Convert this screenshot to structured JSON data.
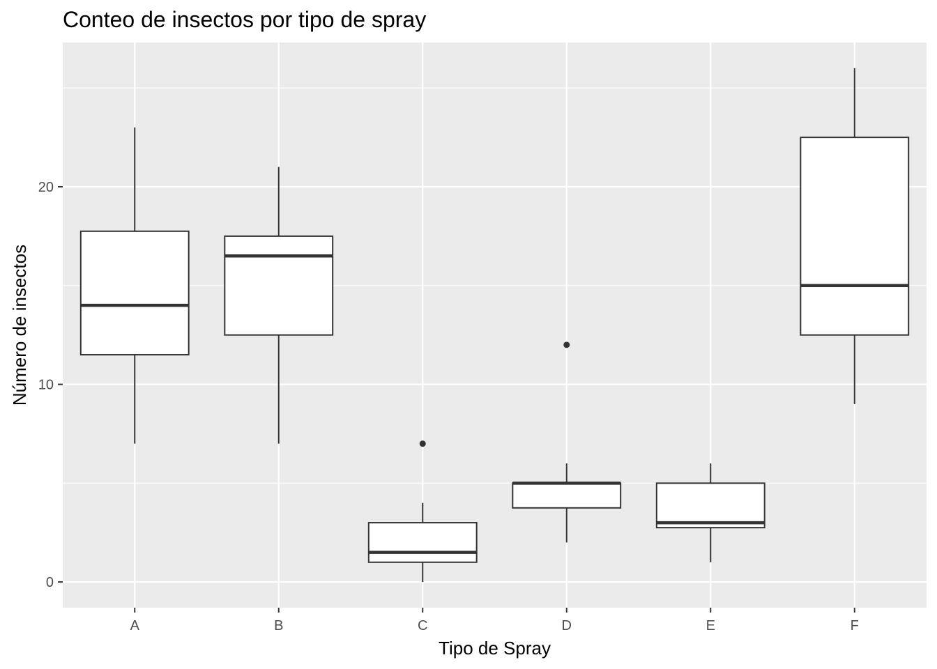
{
  "chart_data": {
    "type": "boxplot",
    "title": "Conteo de insectos por tipo de spray",
    "xlabel": "Tipo de Spray",
    "ylabel": "Número de insectos",
    "categories": [
      "A",
      "B",
      "C",
      "D",
      "E",
      "F"
    ],
    "ylim": [
      -1.3,
      27.3
    ],
    "yticks": [
      0,
      10,
      20
    ],
    "grid": true,
    "boxes": [
      {
        "category": "A",
        "whisker_low": 7,
        "q1": 11.5,
        "median": 14,
        "q3": 17.75,
        "whisker_high": 23,
        "outliers": []
      },
      {
        "category": "B",
        "whisker_low": 7,
        "q1": 12.5,
        "median": 16.5,
        "q3": 17.5,
        "whisker_high": 21,
        "outliers": []
      },
      {
        "category": "C",
        "whisker_low": 0,
        "q1": 1,
        "median": 1.5,
        "q3": 3,
        "whisker_high": 4,
        "outliers": [
          7
        ]
      },
      {
        "category": "D",
        "whisker_low": 2,
        "q1": 3.75,
        "median": 5,
        "q3": 5,
        "whisker_high": 6,
        "outliers": [
          12
        ]
      },
      {
        "category": "E",
        "whisker_low": 1,
        "q1": 2.75,
        "median": 3,
        "q3": 5,
        "whisker_high": 6,
        "outliers": []
      },
      {
        "category": "F",
        "whisker_low": 9,
        "q1": 12.5,
        "median": 15,
        "q3": 22.5,
        "whisker_high": 26,
        "outliers": []
      }
    ],
    "colors": {
      "panel_background": "#ebebeb",
      "grid": "#ffffff",
      "box_fill": "#ffffff",
      "box_stroke": "#333333",
      "tick_text": "#4d4d4d",
      "tick_mark": "#333333"
    }
  }
}
